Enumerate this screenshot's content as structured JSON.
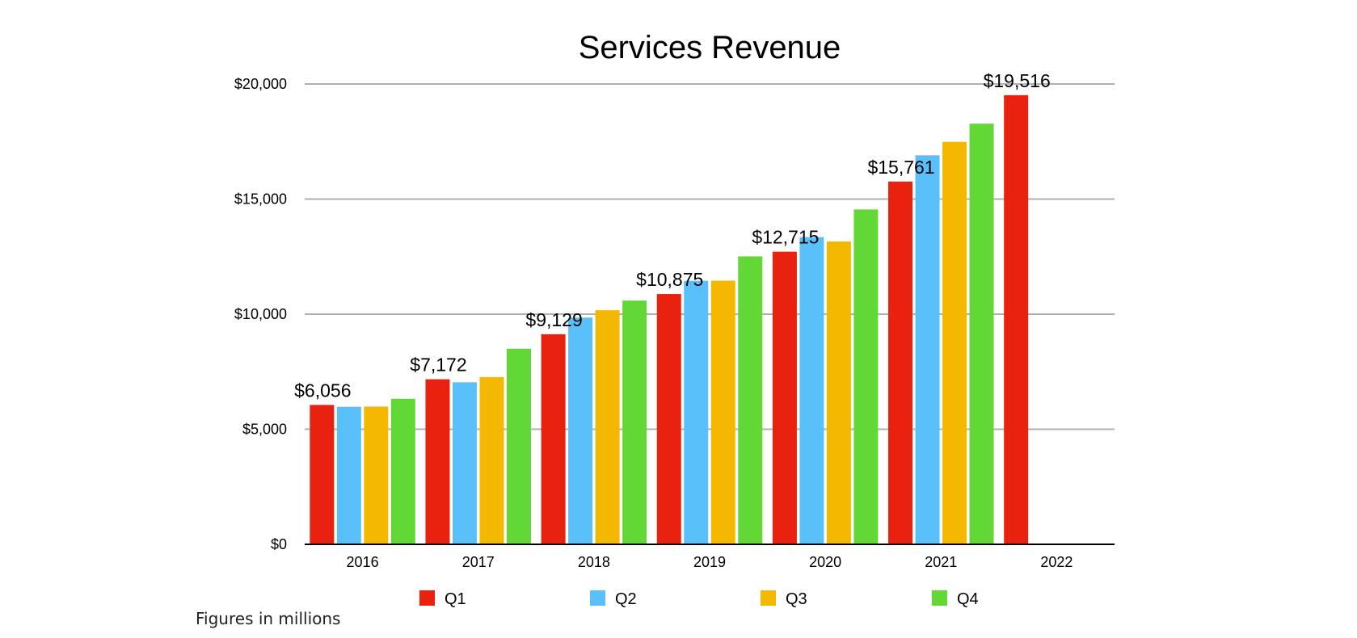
{
  "chart_data": {
    "type": "bar",
    "title": "Services Revenue",
    "xlabel": "",
    "ylabel": "",
    "ylim": [
      0,
      20000
    ],
    "yticks": [
      0,
      5000,
      10000,
      15000,
      20000
    ],
    "ytick_labels": [
      "$0",
      "$5,000",
      "$10,000",
      "$15,000",
      "$20,000"
    ],
    "grid": true,
    "legend_position": "bottom",
    "categories": [
      "2016",
      "2017",
      "2018",
      "2019",
      "2020",
      "2021",
      "2022"
    ],
    "series": [
      {
        "name": "Q1",
        "color": "#E8220F",
        "values": [
          6056,
          7172,
          9129,
          10875,
          12715,
          15761,
          19516
        ]
      },
      {
        "name": "Q2",
        "color": "#5AC0FA",
        "values": [
          5976,
          7041,
          9850,
          11450,
          13348,
          16901,
          null
        ]
      },
      {
        "name": "Q3",
        "color": "#F5B800",
        "values": [
          5985,
          7266,
          10170,
          11455,
          13156,
          17486,
          null
        ]
      },
      {
        "name": "Q4",
        "color": "#62D836",
        "values": [
          6325,
          8501,
          10591,
          12511,
          14549,
          18277,
          null
        ]
      }
    ],
    "data_labels": [
      {
        "category": "2016",
        "series": "Q1",
        "text": "$6,056"
      },
      {
        "category": "2017",
        "series": "Q1",
        "text": "$7,172"
      },
      {
        "category": "2018",
        "series": "Q1",
        "text": "$9,129"
      },
      {
        "category": "2019",
        "series": "Q1",
        "text": "$10,875"
      },
      {
        "category": "2020",
        "series": "Q1",
        "text": "$12,715"
      },
      {
        "category": "2021",
        "series": "Q1",
        "text": "$15,761"
      },
      {
        "category": "2022",
        "series": "Q1",
        "text": "$19,516"
      }
    ],
    "footnote": "Figures in millions"
  }
}
